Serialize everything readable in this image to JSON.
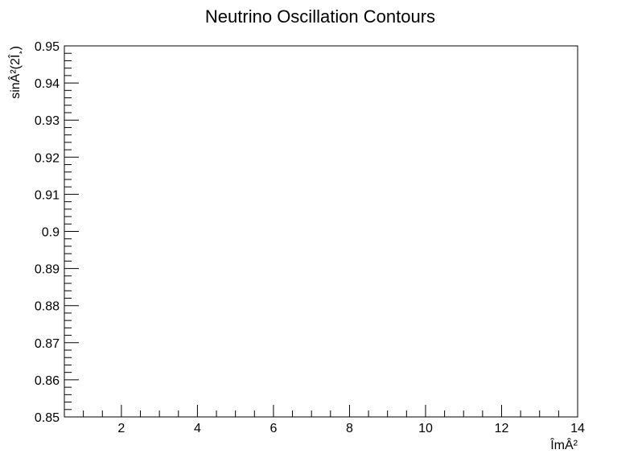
{
  "chart_data": {
    "type": "scatter",
    "title": "Neutrino Oscillation Contours",
    "xlabel": "ÎmÂ²",
    "ylabel": "sinÂ²(2Î¸)",
    "xlim": [
      0.5,
      14
    ],
    "ylim": [
      0.85,
      0.95
    ],
    "x_major_ticks": [
      2,
      4,
      6,
      8,
      10,
      12,
      14
    ],
    "x_tick_labels": [
      "2",
      "4",
      "6",
      "8",
      "10",
      "12",
      "14"
    ],
    "y_major_ticks": [
      0.85,
      0.86,
      0.87,
      0.88,
      0.89,
      0.9,
      0.91,
      0.92,
      0.93,
      0.94,
      0.95
    ],
    "y_tick_labels": [
      "0.85",
      "0.86",
      "0.87",
      "0.88",
      "0.89",
      "0.9",
      "0.91",
      "0.92",
      "0.93",
      "0.94",
      "0.95"
    ],
    "grid": false,
    "series": []
  }
}
